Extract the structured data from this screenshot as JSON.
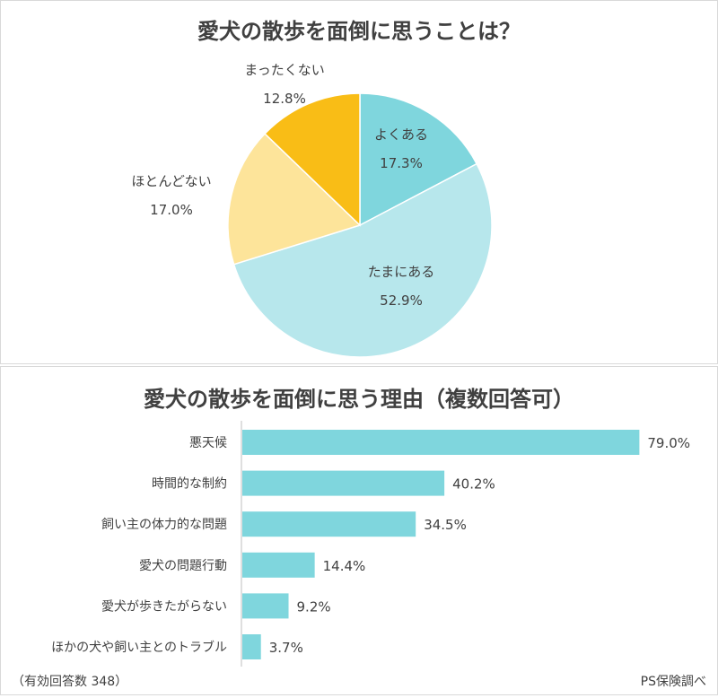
{
  "chart_data": [
    {
      "type": "pie",
      "title": "愛犬の散歩を面倒に思うことは？",
      "slices": [
        {
          "label": "よくある",
          "value": 17.3,
          "value_label": "17.3%",
          "color": "#7fd6dd"
        },
        {
          "label": "たまにある",
          "value": 52.9,
          "value_label": "52.9%",
          "color": "#b7e7ec"
        },
        {
          "label": "ほとんどない",
          "value": 17.0,
          "value_label": "17.0%",
          "color": "#fde49a"
        },
        {
          "label": "まったくない",
          "value": 12.8,
          "value_label": "12.8%",
          "color": "#f9bd16"
        }
      ]
    },
    {
      "type": "bar",
      "orientation": "horizontal",
      "title": "愛犬の散歩を面倒に思う理由（複数回答可）",
      "categories": [
        "悪天候",
        "時間的な制約",
        "飼い主の体力的な問題",
        "愛犬の問題行動",
        "愛犬が歩きたがらない",
        "ほかの犬や飼い主とのトラブル"
      ],
      "values": [
        79.0,
        40.2,
        34.5,
        14.4,
        9.2,
        3.7
      ],
      "value_labels": [
        "79.0%",
        "40.2%",
        "34.5%",
        "14.4%",
        "9.2%",
        "3.7%"
      ],
      "bar_color": "#7fd6dd",
      "xlim": [
        0,
        80
      ]
    }
  ],
  "footer": {
    "respondents": "（有効回答数 348）",
    "source": "PS保険調べ"
  }
}
